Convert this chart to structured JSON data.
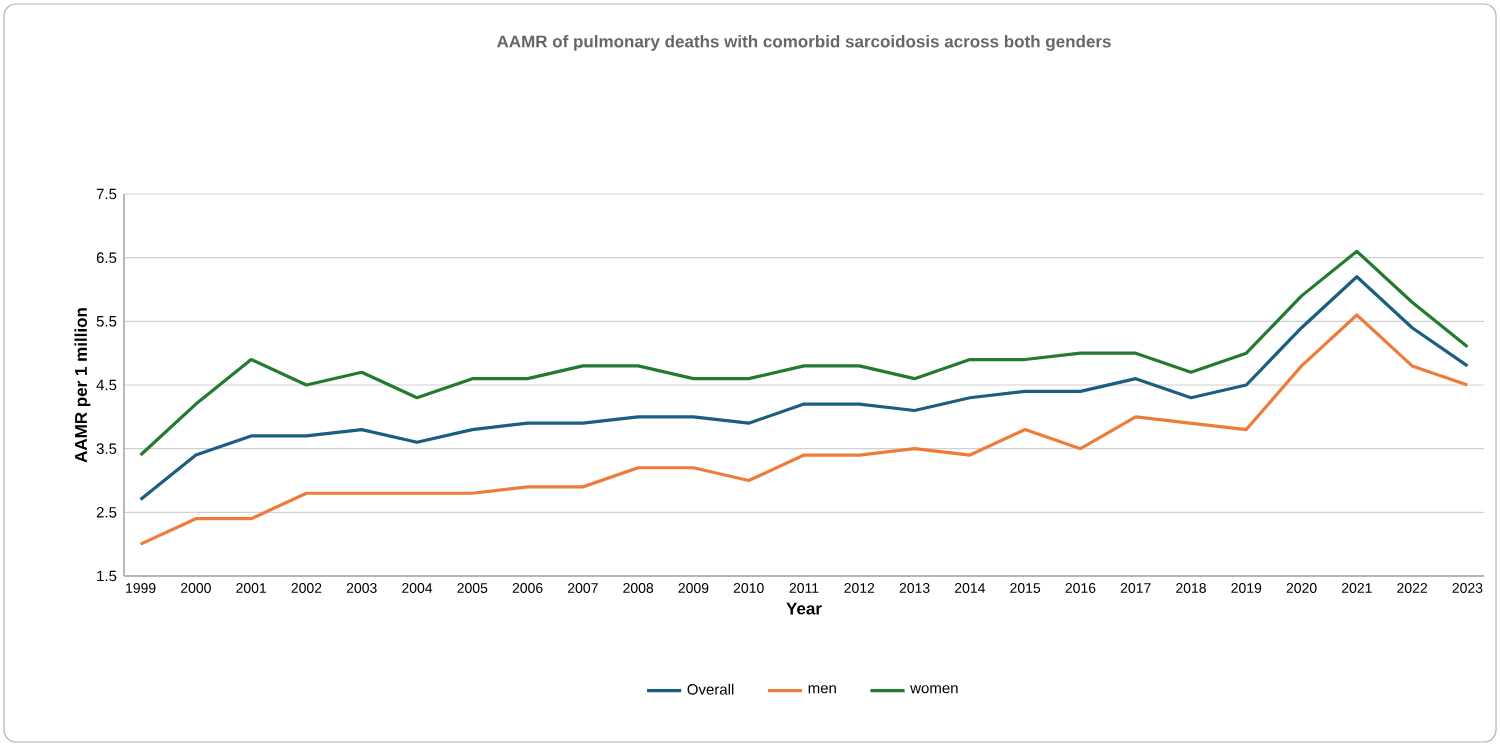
{
  "chart_data": {
    "type": "line",
    "title": "AAMR of pulmonary deaths with comorbid sarcoidosis  across both genders",
    "xlabel": "Year",
    "ylabel": "AAMR per 1 million",
    "categories": [
      "1999",
      "2000",
      "2001",
      "2002",
      "2003",
      "2004",
      "2005",
      "2006",
      "2007",
      "2008",
      "2009",
      "2010",
      "2011",
      "2012",
      "2013",
      "2014",
      "2015",
      "2016",
      "2017",
      "2018",
      "2019",
      "2020",
      "2021",
      "2022",
      "2023"
    ],
    "series": [
      {
        "name": "Overall",
        "color": "#1b5e82",
        "values": [
          2.7,
          3.4,
          3.7,
          3.7,
          3.8,
          3.6,
          3.8,
          3.9,
          3.9,
          4.0,
          4.0,
          3.9,
          4.2,
          4.2,
          4.1,
          4.3,
          4.4,
          4.4,
          4.6,
          4.3,
          4.5,
          5.4,
          6.2,
          5.4,
          4.8
        ]
      },
      {
        "name": "men",
        "color": "#ef7b3a",
        "values": [
          2.0,
          2.4,
          2.4,
          2.8,
          2.8,
          2.8,
          2.8,
          2.9,
          2.9,
          3.2,
          3.2,
          3.0,
          3.4,
          3.4,
          3.5,
          3.4,
          3.8,
          3.5,
          4.0,
          3.9,
          3.8,
          4.8,
          5.6,
          4.8,
          4.5
        ]
      },
      {
        "name": "women",
        "color": "#247a2e",
        "values": [
          3.4,
          4.2,
          4.9,
          4.5,
          4.7,
          4.3,
          4.6,
          4.6,
          4.8,
          4.8,
          4.6,
          4.6,
          4.8,
          4.8,
          4.6,
          4.9,
          4.9,
          5.0,
          5.0,
          4.7,
          5.0,
          5.9,
          6.6,
          5.8,
          5.1
        ]
      }
    ],
    "ylim": [
      1.5,
      7.5
    ],
    "yticks": [
      1.5,
      2.5,
      3.5,
      4.5,
      5.5,
      6.5,
      7.5
    ],
    "grid": "y",
    "legend": "bottom",
    "marker": "none",
    "line_style": "solid"
  }
}
